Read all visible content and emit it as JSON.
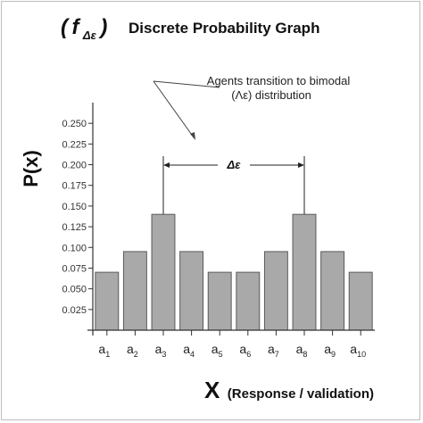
{
  "chart_data": {
    "type": "bar",
    "title": {
      "open_paren": "(",
      "f": "f",
      "subscript": "Δε",
      "close_paren": ")",
      "text": "Discrete Probability Graph"
    },
    "ylabel": "P(x)",
    "xlabel": {
      "symbol": "X",
      "text": "(Response / validation)"
    },
    "ylim": [
      0,
      0.275
    ],
    "yticks": [
      {
        "value": 0.025,
        "label": "0.025"
      },
      {
        "value": 0.05,
        "label": "0.050"
      },
      {
        "value": 0.075,
        "label": "0.075"
      },
      {
        "value": 0.1,
        "label": "0.100"
      },
      {
        "value": 0.125,
        "label": "0.125"
      },
      {
        "value": 0.15,
        "label": "0.150"
      },
      {
        "value": 0.175,
        "label": "0.175"
      },
      {
        "value": 0.2,
        "label": "0.200"
      },
      {
        "value": 0.225,
        "label": "0.225"
      },
      {
        "value": 0.25,
        "label": "0.250"
      }
    ],
    "categories": [
      {
        "base": "a",
        "sub": "1"
      },
      {
        "base": "a",
        "sub": "2"
      },
      {
        "base": "a",
        "sub": "3"
      },
      {
        "base": "a",
        "sub": "4"
      },
      {
        "base": "a",
        "sub": "5"
      },
      {
        "base": "a",
        "sub": "6"
      },
      {
        "base": "a",
        "sub": "7"
      },
      {
        "base": "a",
        "sub": "8"
      },
      {
        "base": "a",
        "sub": "9"
      },
      {
        "base": "a",
        "sub": "10"
      }
    ],
    "values": [
      0.07,
      0.095,
      0.14,
      0.095,
      0.07,
      0.07,
      0.095,
      0.14,
      0.095,
      0.07
    ],
    "annotations": {
      "callout_lines": [
        "Agents transition to bimodal",
        "(Λε) distribution"
      ],
      "delta_label": "Δε",
      "delta_between_categories": [
        2,
        7
      ]
    },
    "grid": false,
    "legend": "none",
    "colors": {
      "bar_fill": "#a9a9a9",
      "bar_stroke": "#5a5a5a",
      "axis": "#333333"
    }
  }
}
